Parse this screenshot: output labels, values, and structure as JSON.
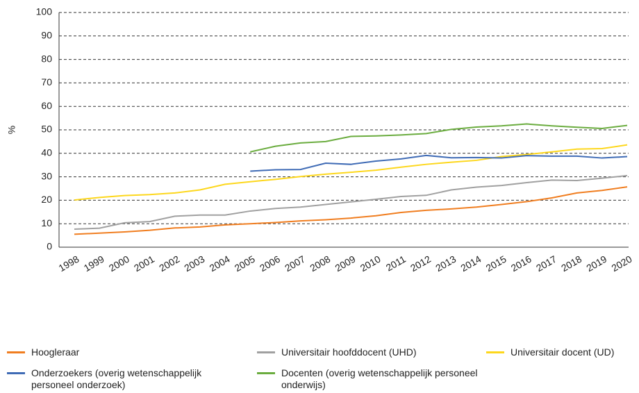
{
  "chart_data": {
    "type": "line",
    "ylabel": "%",
    "categories": [
      "1998",
      "1999",
      "2000",
      "2001",
      "2002",
      "2003",
      "2004",
      "2005",
      "2006",
      "2007",
      "2008",
      "2009",
      "2010",
      "2011",
      "2012",
      "2013",
      "2014",
      "2015",
      "2016",
      "2017",
      "2018",
      "2019",
      "2020"
    ],
    "series": [
      {
        "name": "Hoogleraar",
        "color": "#f07d1f",
        "values": [
          5.5,
          6,
          6.5,
          7.2,
          8.2,
          8.6,
          9.5,
          10,
          10.5,
          11.2,
          11.7,
          12.4,
          13.4,
          14.8,
          15.7,
          16.3,
          17.1,
          18.2,
          19.4,
          21,
          23.1,
          24.2,
          25.7
        ]
      },
      {
        "name": "Universitair hoofddocent (UHD)",
        "color": "#a0a0a0",
        "values": [
          7.7,
          8.1,
          10.4,
          10.9,
          13.2,
          13.7,
          13.7,
          15.4,
          16.5,
          17.1,
          18.2,
          19.3,
          20.4,
          21.6,
          22.1,
          24.4,
          25.6,
          26.3,
          27.5,
          28.6,
          28.4,
          29.4,
          30.5
        ]
      },
      {
        "name": "Universitair docent (UD)",
        "color": "#fdd71c",
        "values": [
          20.1,
          21.2,
          22,
          22.4,
          23.1,
          24.4,
          26.8,
          27.9,
          28.9,
          30.1,
          31.1,
          31.9,
          32.8,
          34.1,
          35.3,
          36.2,
          37,
          38.6,
          39.5,
          40.6,
          41.8,
          42,
          43.6
        ]
      },
      {
        "name": "Onderzoekers (overig wetenschappelijk personeel onderzoek)",
        "color": "#3f6bb5",
        "values": [
          null,
          null,
          null,
          null,
          null,
          null,
          null,
          32.4,
          33,
          33.1,
          35.8,
          35.3,
          36.7,
          37.6,
          39.1,
          38.1,
          38.2,
          38,
          39,
          38.8,
          38.8,
          38,
          38.6
        ]
      },
      {
        "name": "Docenten (overig wetenschappelijk personeel onderwijs)",
        "color": "#6aac3e",
        "values": [
          null,
          null,
          null,
          null,
          null,
          null,
          null,
          40.6,
          43,
          44.4,
          45,
          47.2,
          47.4,
          47.8,
          48.4,
          50.2,
          51.2,
          51.7,
          52.5,
          51.7,
          51.1,
          50.6,
          51.9
        ]
      }
    ],
    "ylim": [
      0,
      100
    ],
    "yticks": [
      0,
      10,
      20,
      30,
      40,
      50,
      60,
      70,
      80,
      90,
      100
    ],
    "grid": true
  }
}
